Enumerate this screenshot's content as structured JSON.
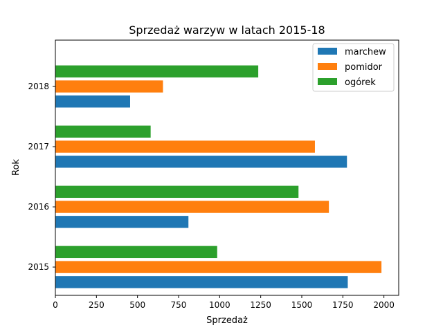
{
  "chart_data": {
    "type": "bar",
    "orientation": "horizontal",
    "title": "Sprzedaż warzyw w latach 2015-18",
    "xlabel": "Sprzedaż",
    "ylabel": "Rok",
    "categories": [
      "2015",
      "2016",
      "2017",
      "2018"
    ],
    "xlim": [
      0,
      2090
    ],
    "xticks": [
      0,
      250,
      500,
      750,
      1000,
      1250,
      1500,
      1750,
      2000
    ],
    "grid": false,
    "legend_position": "top-right",
    "series": [
      {
        "name": "marchew",
        "color": "#1f77b4",
        "values": [
          1780,
          810,
          1775,
          455
        ]
      },
      {
        "name": "pomidor",
        "color": "#ff7f0e",
        "values": [
          1985,
          1665,
          1580,
          655
        ]
      },
      {
        "name": "ogórek",
        "color": "#2ca02c",
        "values": [
          985,
          1480,
          580,
          1235
        ]
      }
    ]
  }
}
